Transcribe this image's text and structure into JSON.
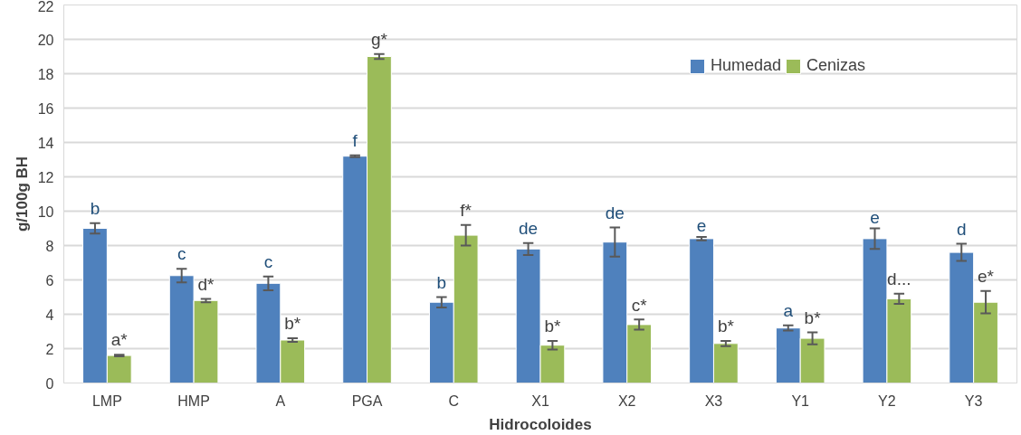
{
  "chart_data": {
    "type": "bar",
    "xlabel": "Hidrocoloides",
    "ylabel": "g/100g BH",
    "categories": [
      "LMP",
      "HMP",
      "A",
      "PGA",
      "C",
      "X1",
      "X2",
      "X3",
      "Y1",
      "Y2",
      "Y3"
    ],
    "series": [
      {
        "name": "Humedad",
        "color": "#4f81bd",
        "values": [
          9.0,
          6.25,
          5.8,
          13.2,
          4.7,
          7.8,
          8.2,
          8.4,
          3.2,
          8.4,
          7.6
        ],
        "errors": [
          0.3,
          0.4,
          0.4,
          0.05,
          0.3,
          0.35,
          0.85,
          0.1,
          0.15,
          0.6,
          0.5
        ],
        "value_labels": [
          "b",
          "c",
          "c",
          "f",
          "b",
          "de",
          "de",
          "e",
          "a",
          "e",
          "d"
        ]
      },
      {
        "name": "Cenizas",
        "color": "#9bbb59",
        "values": [
          1.6,
          4.8,
          2.5,
          19.0,
          8.6,
          2.2,
          3.4,
          2.3,
          2.6,
          4.9,
          4.7
        ],
        "errors": [
          0.05,
          0.1,
          0.1,
          0.15,
          0.6,
          0.25,
          0.3,
          0.15,
          0.35,
          0.3,
          0.65
        ],
        "value_labels": [
          "a*",
          "d*",
          "b*",
          "g*",
          "f*",
          "b*",
          "c*",
          "b*",
          "b*",
          "d...",
          "e*"
        ]
      }
    ],
    "ylim": [
      0,
      22
    ],
    "yticks": [
      0,
      2,
      4,
      6,
      8,
      10,
      12,
      14,
      16,
      18,
      20,
      22
    ],
    "grid": "y",
    "legend": "top"
  }
}
